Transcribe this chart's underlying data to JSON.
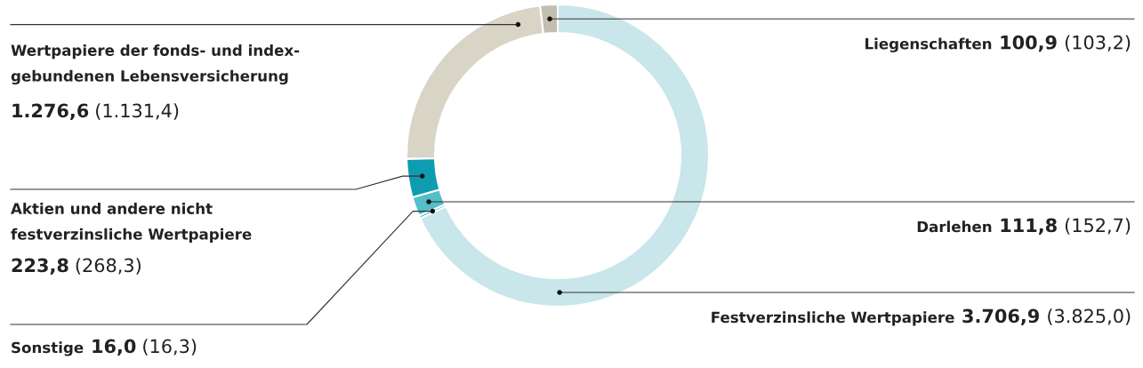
{
  "chart_data": {
    "type": "donut",
    "categories": [
      "Festverzinsliche Wertpapiere",
      "Sonstige",
      "Darlehen",
      "Aktien und andere nicht\nfestverzinsliche Wertpapiere",
      "Wertpapiere der fonds- und index-\ngebundenen Lebensversicherung",
      "Liegenschaften"
    ],
    "values": [
      3706.9,
      16.0,
      111.8,
      223.8,
      1276.6,
      100.9
    ],
    "value_labels": [
      "3.706,9 (3.825,0)",
      "16,0 (16,3)",
      "111,8 (152,7)",
      "223,8 (268,3)",
      "1.276,6 (1.131,4)",
      "100,9 (103,2)"
    ],
    "colors": [
      "#c9e6ea",
      "#2ea9b6",
      "#54bfc6",
      "#0e9db0",
      "#d8d5c7",
      "#c2beb0"
    ]
  }
}
